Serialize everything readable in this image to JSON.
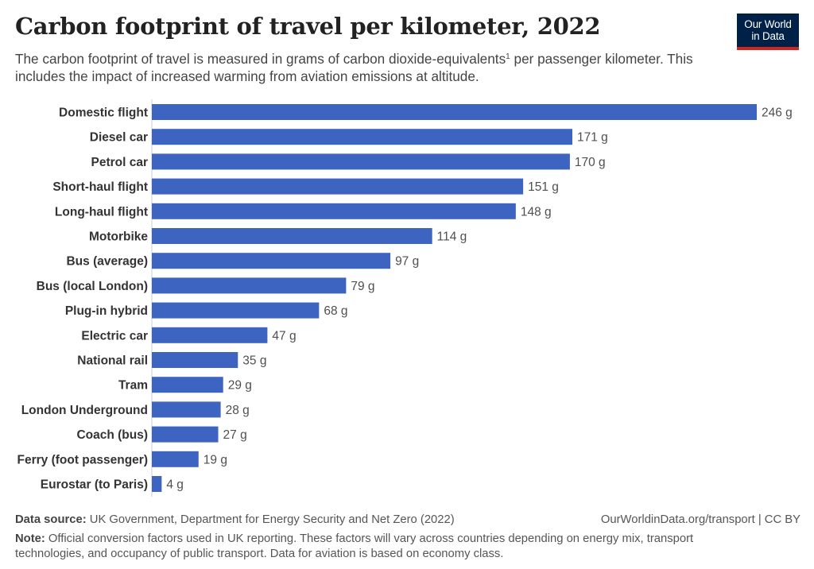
{
  "header": {
    "title": "Carbon footprint of travel per kilometer, 2022",
    "subtitle_main": "The carbon footprint of travel is measured in grams of carbon dioxide-equivalents",
    "subtitle_sup": "1",
    "subtitle_rest": " per passenger kilometer. This includes the impact of increased warming from aviation emissions at altitude.",
    "logo_line1": "Our World",
    "logo_line2": "in Data"
  },
  "footer": {
    "source_label": "Data source:",
    "source_text": " UK Government, Department for Energy Security and Net Zero (2022)",
    "link_text": "OurWorldinData.org/transport | CC BY",
    "note_label": "Note:",
    "note_text": " Official conversion factors used in UK reporting. These factors will vary across countries depending on energy mix, transport technologies, and occupancy of public transport. Data for aviation is based on economy class."
  },
  "colors": {
    "bar": "#3d64c0",
    "brand": "#002147",
    "brand_accent": "#ce261e"
  },
  "chart_data": {
    "type": "bar",
    "orientation": "horizontal",
    "title": "Carbon footprint of travel per kilometer, 2022",
    "unit_suffix": " g",
    "categories": [
      "Domestic flight",
      "Diesel car",
      "Petrol car",
      "Short-haul flight",
      "Long-haul flight",
      "Motorbike",
      "Bus (average)",
      "Bus (local London)",
      "Plug-in hybrid",
      "Electric car",
      "National rail",
      "Tram",
      "London Underground",
      "Coach (bus)",
      "Ferry (foot passenger)",
      "Eurostar (to Paris)"
    ],
    "values": [
      246,
      171,
      170,
      151,
      148,
      114,
      97,
      79,
      68,
      47,
      35,
      29,
      28,
      27,
      19,
      4
    ],
    "value_labels": [
      "246 g",
      "171 g",
      "170 g",
      "151 g",
      "148 g",
      "114 g",
      "97 g",
      "79 g",
      "68 g",
      "47 g",
      "35 g",
      "29 g",
      "28 g",
      "27 g",
      "19 g",
      "4 g"
    ],
    "xlim": [
      0,
      246
    ],
    "grid": false,
    "legend": "none"
  }
}
